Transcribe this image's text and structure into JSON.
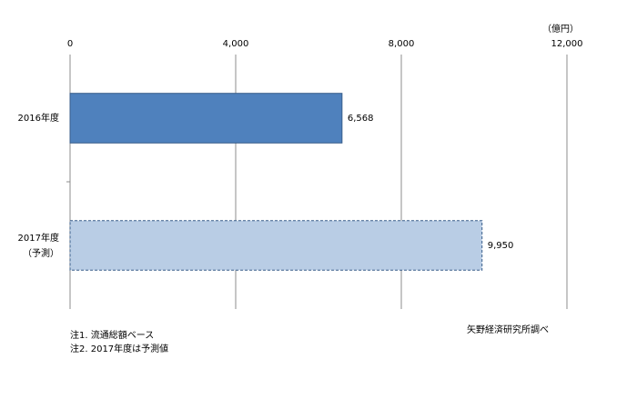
{
  "chart_data": {
    "type": "bar",
    "orientation": "horizontal",
    "unit_label": "（億円）",
    "categories": [
      "2016年度",
      "2017年度"
    ],
    "category_sublabels": [
      null,
      "（予測）"
    ],
    "values": [
      6568,
      9950
    ],
    "value_labels": [
      "6,568",
      "9,950"
    ],
    "colors": [
      "#4f81bd",
      "#b9cde5"
    ],
    "border_color": "#385d8a",
    "border_styles": [
      "solid",
      "dashed"
    ],
    "xlim": [
      0,
      12000
    ],
    "xticks": [
      0,
      {
        "value": 4000,
        "label": "4,000"
      },
      {
        "value": 8000,
        "label": "8,000"
      },
      {
        "value": 12000,
        "label": "12,000"
      }
    ],
    "grid": true,
    "notes": [
      "注1. 流通総額ベース",
      "注2. 2017年度は予測値"
    ],
    "source": "矢野経済研究所調べ"
  }
}
